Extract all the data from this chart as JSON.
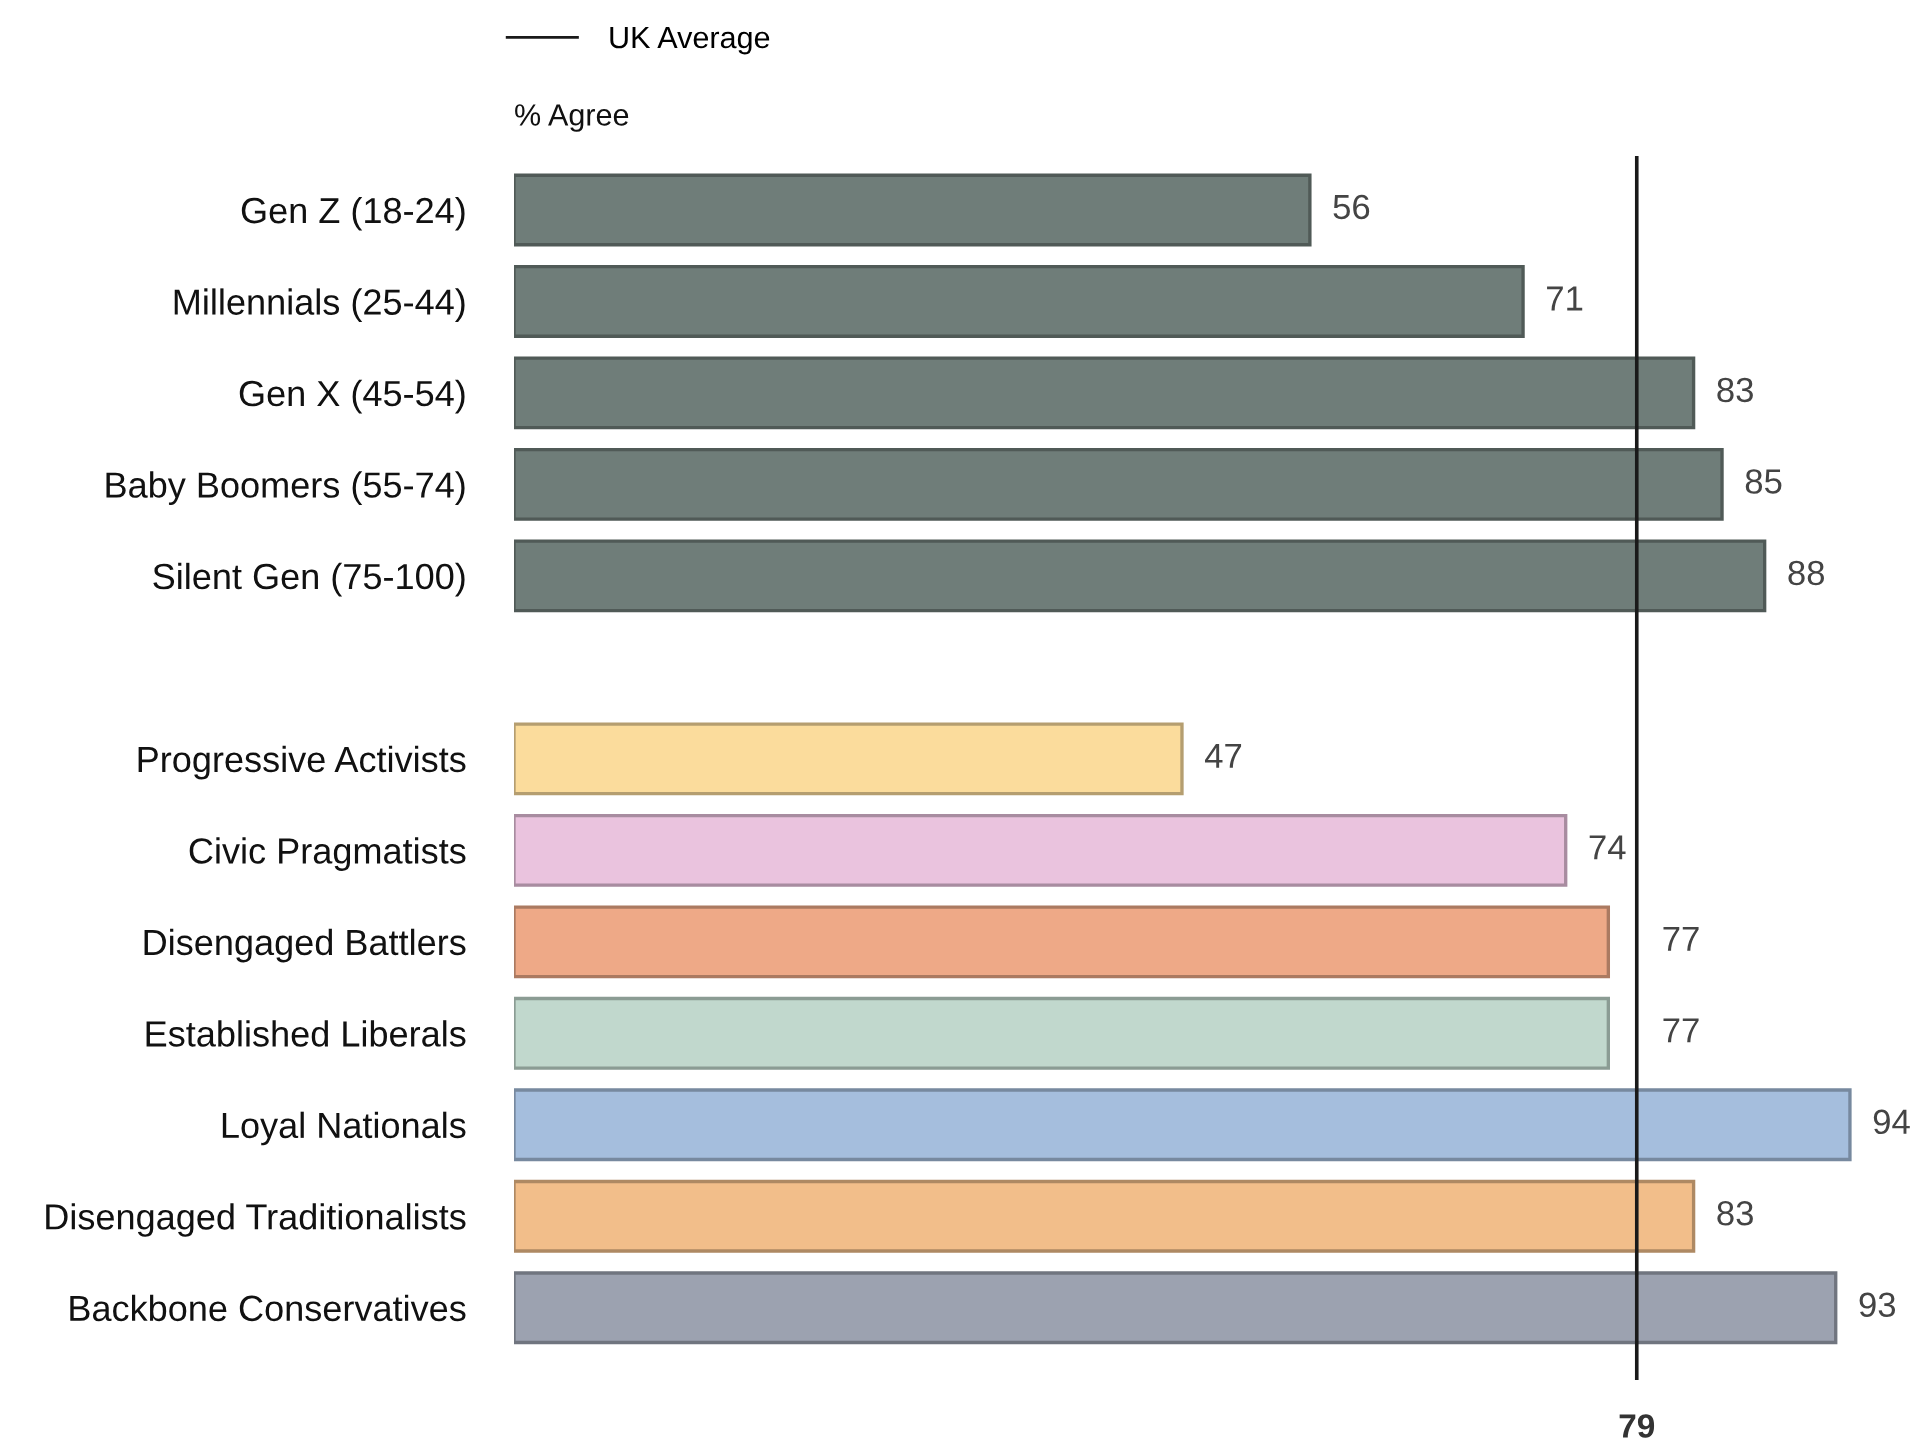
{
  "chart_data": {
    "type": "bar",
    "orientation": "horizontal",
    "xlabel": "% Agree",
    "categories": [
      "Gen Z (18-24)",
      "Millennials (25-44)",
      "Gen X (45-54)",
      "Baby Boomers (55-74)",
      "Silent Gen (75-100)",
      null,
      "Progressive Activists",
      "Civic Pragmatists",
      "Disengaged Battlers",
      "Established Liberals",
      "Loyal Nationals",
      "Disengaged Traditionalists",
      "Backbone Conservatives"
    ],
    "values": [
      56,
      71,
      83,
      85,
      88,
      null,
      47,
      74,
      77,
      77,
      94,
      83,
      93
    ],
    "colors": [
      "#6f7d79",
      "#6f7d79",
      "#6f7d79",
      "#6f7d79",
      "#6f7d79",
      null,
      "#fbdc9c",
      "#eac3de",
      "#eea987",
      "#c1d8cd",
      "#a5bedd",
      "#f2be8a",
      "#9ca2b0"
    ],
    "ref_lines": [
      {
        "axis": "x",
        "value": 79,
        "label": "UK Average",
        "color": "#1a1a1a"
      }
    ],
    "annotations": [
      "79"
    ],
    "data_labels": true,
    "legend": "top left",
    "grid": false
  }
}
